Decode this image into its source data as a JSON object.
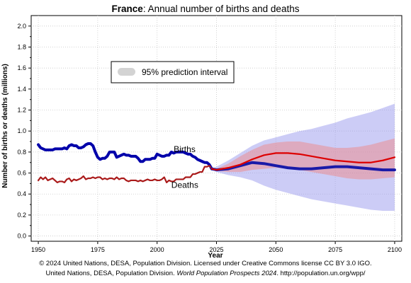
{
  "chart_data": {
    "type": "line",
    "title_bold": "France",
    "title_rest": ": Annual number of births and deaths",
    "ylabel": "Number of births or deaths (millions)",
    "xlabel": "Year",
    "xlim": [
      1947,
      2103
    ],
    "ylim": [
      -0.05,
      2.1
    ],
    "x_ticks": [
      1950,
      1975,
      2000,
      2025,
      2050,
      2075,
      2100
    ],
    "y_ticks": [
      0.0,
      0.2,
      0.4,
      0.6,
      0.8,
      1.0,
      1.2,
      1.4,
      1.6,
      1.8,
      2.0
    ],
    "y_tick_labels": [
      "0.0",
      "0.2",
      "0.4",
      "0.6",
      "0.8",
      "1.0",
      "1.2",
      "1.4",
      "1.6",
      "1.8",
      "2.0"
    ],
    "grid": true,
    "legend": {
      "label": "95% prediction interval",
      "placement": "top-left"
    },
    "series": [
      {
        "name": "Births",
        "color": "#0000aa",
        "segment": "estimates",
        "x": [
          1950,
          1951,
          1952,
          1953,
          1954,
          1955,
          1956,
          1957,
          1958,
          1959,
          1960,
          1961,
          1962,
          1963,
          1964,
          1965,
          1966,
          1967,
          1968,
          1969,
          1970,
          1971,
          1972,
          1973,
          1974,
          1975,
          1976,
          1977,
          1978,
          1979,
          1980,
          1981,
          1982,
          1983,
          1984,
          1985,
          1986,
          1987,
          1988,
          1989,
          1990,
          1991,
          1992,
          1993,
          1994,
          1995,
          1996,
          1997,
          1998,
          1999,
          2000,
          2001,
          2002,
          2003,
          2004,
          2005,
          2006,
          2007,
          2008,
          2009,
          2010,
          2011,
          2012,
          2013,
          2014,
          2015,
          2016,
          2017,
          2018,
          2019,
          2020,
          2021,
          2022,
          2023
        ],
        "y": [
          0.87,
          0.84,
          0.83,
          0.82,
          0.82,
          0.82,
          0.82,
          0.83,
          0.83,
          0.83,
          0.83,
          0.84,
          0.83,
          0.86,
          0.87,
          0.86,
          0.86,
          0.84,
          0.84,
          0.85,
          0.87,
          0.88,
          0.88,
          0.86,
          0.8,
          0.75,
          0.73,
          0.74,
          0.74,
          0.76,
          0.8,
          0.8,
          0.8,
          0.75,
          0.76,
          0.77,
          0.78,
          0.77,
          0.77,
          0.76,
          0.76,
          0.76,
          0.74,
          0.71,
          0.71,
          0.73,
          0.73,
          0.73,
          0.74,
          0.74,
          0.78,
          0.77,
          0.76,
          0.76,
          0.77,
          0.77,
          0.8,
          0.79,
          0.8,
          0.8,
          0.8,
          0.8,
          0.79,
          0.78,
          0.78,
          0.76,
          0.75,
          0.73,
          0.72,
          0.71,
          0.7,
          0.7,
          0.68,
          0.64
        ]
      },
      {
        "name": "Deaths",
        "color": "#aa1a1a",
        "segment": "estimates",
        "x": [
          1950,
          1951,
          1952,
          1953,
          1954,
          1955,
          1956,
          1957,
          1958,
          1959,
          1960,
          1961,
          1962,
          1963,
          1964,
          1965,
          1966,
          1967,
          1968,
          1969,
          1970,
          1971,
          1972,
          1973,
          1974,
          1975,
          1976,
          1977,
          1978,
          1979,
          1980,
          1981,
          1982,
          1983,
          1984,
          1985,
          1986,
          1987,
          1988,
          1989,
          1990,
          1991,
          1992,
          1993,
          1994,
          1995,
          1996,
          1997,
          1998,
          1999,
          2000,
          2001,
          2002,
          2003,
          2004,
          2005,
          2006,
          2007,
          2008,
          2009,
          2010,
          2011,
          2012,
          2013,
          2014,
          2015,
          2016,
          2017,
          2018,
          2019,
          2020,
          2021,
          2022,
          2023
        ],
        "y": [
          0.53,
          0.56,
          0.54,
          0.56,
          0.53,
          0.54,
          0.55,
          0.53,
          0.51,
          0.52,
          0.52,
          0.51,
          0.54,
          0.55,
          0.52,
          0.54,
          0.53,
          0.54,
          0.55,
          0.57,
          0.54,
          0.55,
          0.55,
          0.56,
          0.55,
          0.56,
          0.56,
          0.54,
          0.55,
          0.54,
          0.55,
          0.55,
          0.54,
          0.56,
          0.54,
          0.55,
          0.55,
          0.53,
          0.52,
          0.53,
          0.53,
          0.53,
          0.52,
          0.53,
          0.52,
          0.53,
          0.54,
          0.53,
          0.53,
          0.54,
          0.53,
          0.53,
          0.54,
          0.56,
          0.51,
          0.53,
          0.52,
          0.52,
          0.54,
          0.54,
          0.54,
          0.54,
          0.56,
          0.56,
          0.56,
          0.59,
          0.59,
          0.6,
          0.61,
          0.61,
          0.66,
          0.66,
          0.67,
          0.64
        ]
      },
      {
        "name": "Births",
        "color": "#1a1aa8",
        "segment": "projection",
        "x": [
          2023,
          2025,
          2030,
          2035,
          2040,
          2045,
          2050,
          2055,
          2060,
          2065,
          2070,
          2075,
          2080,
          2085,
          2090,
          2095,
          2100
        ],
        "y": [
          0.64,
          0.63,
          0.64,
          0.67,
          0.7,
          0.69,
          0.67,
          0.65,
          0.64,
          0.64,
          0.65,
          0.66,
          0.66,
          0.65,
          0.64,
          0.63,
          0.63
        ]
      },
      {
        "name": "Deaths",
        "color": "#dd0000",
        "segment": "projection",
        "x": [
          2023,
          2025,
          2030,
          2035,
          2040,
          2045,
          2050,
          2055,
          2060,
          2065,
          2070,
          2075,
          2080,
          2085,
          2090,
          2095,
          2100
        ],
        "y": [
          0.64,
          0.63,
          0.65,
          0.68,
          0.73,
          0.77,
          0.79,
          0.79,
          0.78,
          0.76,
          0.74,
          0.72,
          0.71,
          0.7,
          0.7,
          0.72,
          0.75
        ]
      }
    ],
    "bands": [
      {
        "name": "Births 95% prediction interval",
        "color": "#9999ee",
        "x": [
          2023,
          2025,
          2030,
          2035,
          2040,
          2045,
          2050,
          2055,
          2060,
          2065,
          2070,
          2075,
          2080,
          2085,
          2090,
          2095,
          2100
        ],
        "low": [
          0.64,
          0.61,
          0.58,
          0.56,
          0.53,
          0.48,
          0.44,
          0.41,
          0.38,
          0.35,
          0.33,
          0.31,
          0.29,
          0.27,
          0.25,
          0.24,
          0.24
        ],
        "high": [
          0.64,
          0.66,
          0.72,
          0.79,
          0.86,
          0.91,
          0.94,
          0.97,
          1.0,
          1.02,
          1.05,
          1.08,
          1.12,
          1.15,
          1.18,
          1.22,
          1.26
        ]
      },
      {
        "name": "Deaths 95% prediction interval",
        "color": "#ee8888",
        "x": [
          2023,
          2025,
          2030,
          2035,
          2040,
          2045,
          2050,
          2055,
          2060,
          2065,
          2070,
          2075,
          2080,
          2085,
          2090,
          2095,
          2100
        ],
        "low": [
          0.64,
          0.62,
          0.61,
          0.61,
          0.63,
          0.64,
          0.65,
          0.64,
          0.63,
          0.61,
          0.59,
          0.57,
          0.55,
          0.54,
          0.54,
          0.55,
          0.56
        ],
        "high": [
          0.64,
          0.64,
          0.69,
          0.76,
          0.82,
          0.87,
          0.89,
          0.9,
          0.9,
          0.88,
          0.86,
          0.84,
          0.84,
          0.85,
          0.87,
          0.9,
          0.93
        ]
      }
    ],
    "annotations": [
      {
        "text": "Births",
        "x": 2007,
        "y": 0.8
      },
      {
        "text": "Deaths",
        "x": 2006,
        "y": 0.46
      }
    ]
  },
  "footer": {
    "line1": "© 2024 United Nations, DESA, Population Division. Licensed under Creative Commons license CC BY 3.0 IGO.",
    "line2_prefix": "United Nations, DESA, Population Division. ",
    "line2_italic": "World Population Prospects 2024",
    "line2_suffix": ". http://population.un.org/wpp/"
  }
}
